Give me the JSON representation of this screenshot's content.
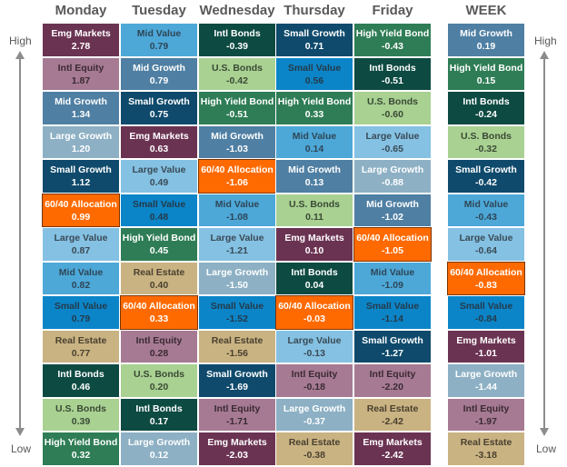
{
  "chart_data": {
    "type": "table",
    "axis_labels": {
      "high": "High",
      "low": "Low"
    },
    "colors": {
      "Emg Markets": {
        "bg": "#6b3352",
        "fg": "#ffffff"
      },
      "Intl Equity": {
        "bg": "#a67a93",
        "fg": "#3a2a33"
      },
      "Mid Growth": {
        "bg": "#4f7fa3",
        "fg": "#ffffff"
      },
      "Large Growth": {
        "bg": "#8db0c4",
        "fg": "#ffffff"
      },
      "Small Growth": {
        "bg": "#0f4a6c",
        "fg": "#ffffff"
      },
      "60/40 Allocation": {
        "bg": "#ff6a00",
        "fg": "#ffffff"
      },
      "Large Value": {
        "bg": "#84c1e3",
        "fg": "#3a4a55"
      },
      "Mid Value": {
        "bg": "#4da8d8",
        "fg": "#2e4656"
      },
      "Small Value": {
        "bg": "#0c85c8",
        "fg": "#243a4a"
      },
      "Real Estate": {
        "bg": "#c9b382",
        "fg": "#4a4030"
      },
      "Intl Bonds": {
        "bg": "#0d4a42",
        "fg": "#ffffff"
      },
      "U.S. Bonds": {
        "bg": "#a9d192",
        "fg": "#3a4a35"
      },
      "High Yield Bond": {
        "bg": "#2f7d56",
        "fg": "#ffffff"
      }
    },
    "highlight": "60/40 Allocation",
    "columns": [
      {
        "label": "Monday",
        "rows": [
          {
            "name": "Emg Markets",
            "value": "2.78"
          },
          {
            "name": "Intl Equity",
            "value": "1.87"
          },
          {
            "name": "Mid Growth",
            "value": "1.34"
          },
          {
            "name": "Large Growth",
            "value": "1.20"
          },
          {
            "name": "Small Growth",
            "value": "1.12"
          },
          {
            "name": "60/40 Allocation",
            "value": "0.99"
          },
          {
            "name": "Large Value",
            "value": "0.87"
          },
          {
            "name": "Mid Value",
            "value": "0.82"
          },
          {
            "name": "Small Value",
            "value": "0.79"
          },
          {
            "name": "Real Estate",
            "value": "0.77"
          },
          {
            "name": "Intl Bonds",
            "value": "0.46"
          },
          {
            "name": "U.S. Bonds",
            "value": "0.39"
          },
          {
            "name": "High Yield Bond",
            "value": "0.32"
          }
        ]
      },
      {
        "label": "Tuesday",
        "rows": [
          {
            "name": "Mid Value",
            "value": "0.79"
          },
          {
            "name": "Mid Growth",
            "value": "0.79"
          },
          {
            "name": "Small Growth",
            "value": "0.75"
          },
          {
            "name": "Emg Markets",
            "value": "0.63"
          },
          {
            "name": "Large Value",
            "value": "0.49"
          },
          {
            "name": "Small Value",
            "value": "0.48"
          },
          {
            "name": "High Yield Bond",
            "value": "0.45"
          },
          {
            "name": "Real Estate",
            "value": "0.40"
          },
          {
            "name": "60/40 Allocation",
            "value": "0.33"
          },
          {
            "name": "Intl Equity",
            "value": "0.28"
          },
          {
            "name": "U.S. Bonds",
            "value": "0.20"
          },
          {
            "name": "Intl Bonds",
            "value": "0.17"
          },
          {
            "name": "Large Growth",
            "value": "0.12"
          }
        ]
      },
      {
        "label": "Wednesday",
        "rows": [
          {
            "name": "Intl Bonds",
            "value": "-0.39"
          },
          {
            "name": "U.S. Bonds",
            "value": "-0.42"
          },
          {
            "name": "High Yield Bond",
            "value": "-0.51"
          },
          {
            "name": "Mid Growth",
            "value": "-1.03"
          },
          {
            "name": "60/40 Allocation",
            "value": "-1.06"
          },
          {
            "name": "Mid Value",
            "value": "-1.08"
          },
          {
            "name": "Large Value",
            "value": "-1.21"
          },
          {
            "name": "Large Growth",
            "value": "-1.50"
          },
          {
            "name": "Small Value",
            "value": "-1.52"
          },
          {
            "name": "Real Estate",
            "value": "-1.56"
          },
          {
            "name": "Small Growth",
            "value": "-1.69"
          },
          {
            "name": "Intl Equity",
            "value": "-1.71"
          },
          {
            "name": "Emg Markets",
            "value": "-2.03"
          }
        ]
      },
      {
        "label": "Thursday",
        "rows": [
          {
            "name": "Small Growth",
            "value": "0.71"
          },
          {
            "name": "Small Value",
            "value": "0.56"
          },
          {
            "name": "High Yield Bond",
            "value": "0.33"
          },
          {
            "name": "Mid Value",
            "value": "0.14"
          },
          {
            "name": "Mid Growth",
            "value": "0.13"
          },
          {
            "name": "U.S. Bonds",
            "value": "0.11"
          },
          {
            "name": "Emg Markets",
            "value": "0.10"
          },
          {
            "name": "Intl Bonds",
            "value": "0.04"
          },
          {
            "name": "60/40 Allocation",
            "value": "-0.03"
          },
          {
            "name": "Large Value",
            "value": "-0.13"
          },
          {
            "name": "Intl Equity",
            "value": "-0.18"
          },
          {
            "name": "Large Growth",
            "value": "-0.37"
          },
          {
            "name": "Real Estate",
            "value": "-0.38"
          }
        ]
      },
      {
        "label": "Friday",
        "rows": [
          {
            "name": "High Yield Bond",
            "value": "-0.43"
          },
          {
            "name": "Intl Bonds",
            "value": "-0.51"
          },
          {
            "name": "U.S. Bonds",
            "value": "-0.60"
          },
          {
            "name": "Large Value",
            "value": "-0.65"
          },
          {
            "name": "Large Growth",
            "value": "-0.88"
          },
          {
            "name": "Mid Growth",
            "value": "-1.02"
          },
          {
            "name": "60/40 Allocation",
            "value": "-1.05"
          },
          {
            "name": "Mid Value",
            "value": "-1.09"
          },
          {
            "name": "Small Value",
            "value": "-1.14"
          },
          {
            "name": "Small Growth",
            "value": "-1.27"
          },
          {
            "name": "Intl Equity",
            "value": "-2.20"
          },
          {
            "name": "Real Estate",
            "value": "-2.42"
          },
          {
            "name": "Emg Markets",
            "value": "-2.42"
          }
        ]
      },
      {
        "label": "WEEK",
        "rows": [
          {
            "name": "Mid Growth",
            "value": "0.19"
          },
          {
            "name": "High Yield Bond",
            "value": "0.15"
          },
          {
            "name": "Intl Bonds",
            "value": "-0.24"
          },
          {
            "name": "U.S. Bonds",
            "value": "-0.32"
          },
          {
            "name": "Small Growth",
            "value": "-0.42"
          },
          {
            "name": "Mid Value",
            "value": "-0.43"
          },
          {
            "name": "Large Value",
            "value": "-0.64"
          },
          {
            "name": "60/40 Allocation",
            "value": "-0.83"
          },
          {
            "name": "Small Value",
            "value": "-0.84"
          },
          {
            "name": "Emg Markets",
            "value": "-1.01"
          },
          {
            "name": "Large Growth",
            "value": "-1.44"
          },
          {
            "name": "Intl Equity",
            "value": "-1.97"
          },
          {
            "name": "Real Estate",
            "value": "-3.18"
          }
        ]
      }
    ]
  }
}
